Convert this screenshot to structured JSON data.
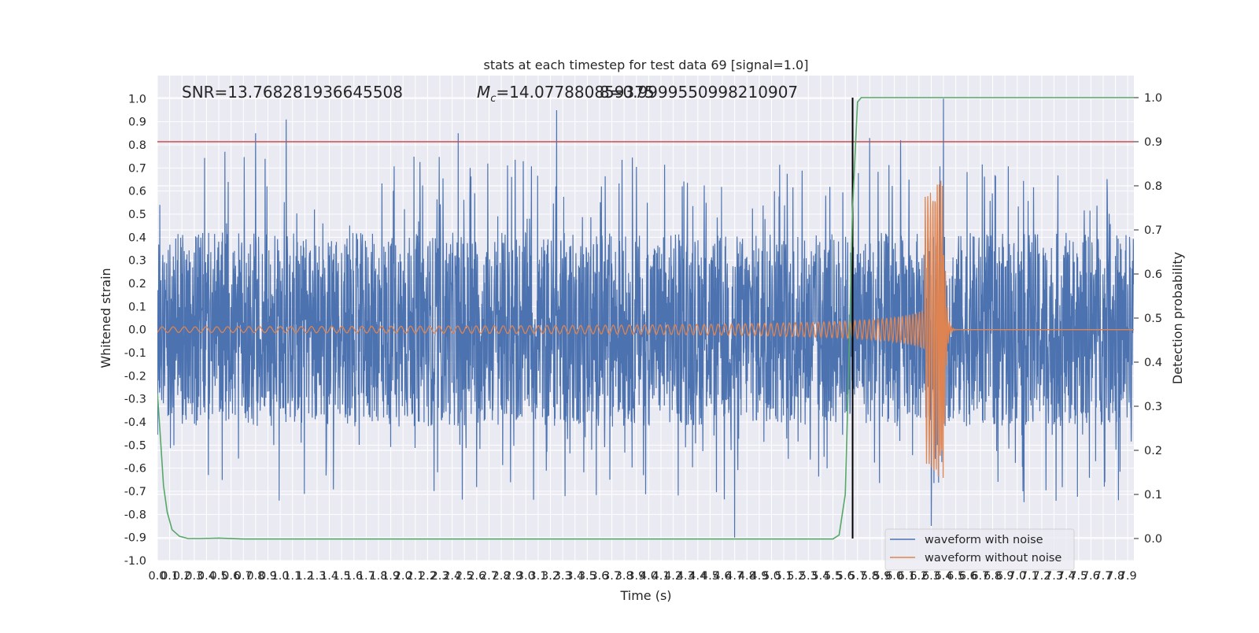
{
  "chart_data": {
    "type": "line",
    "title": "stats at each timestep for test data 69 [signal=1.0]",
    "xlabel": "Time (s)",
    "ylabel": "Whitened strain",
    "y2label": "Detection probability",
    "xlim": [
      0.0,
      7.95
    ],
    "ylim": [
      -1.0,
      1.1
    ],
    "y2lim": [
      -0.05,
      1.05
    ],
    "x_ticks": [
      "0.0",
      "0.1",
      "0.2",
      "0.3",
      "0.4",
      "0.5",
      "0.6",
      "0.7",
      "0.8",
      "0.9",
      "1.0",
      "1.1",
      "1.2",
      "1.3",
      "1.4",
      "1.5",
      "1.6",
      "1.7",
      "1.8",
      "1.9",
      "2.0",
      "2.1",
      "2.2",
      "2.3",
      "2.4",
      "2.5",
      "2.6",
      "2.7",
      "2.8",
      "2.9",
      "3.0",
      "3.1",
      "3.2",
      "3.3",
      "3.4",
      "3.5",
      "3.6",
      "3.7",
      "3.8",
      "3.9",
      "4.0",
      "4.1",
      "4.2",
      "4.3",
      "4.4",
      "4.5",
      "4.6",
      "4.7",
      "4.8",
      "4.9",
      "5.0",
      "5.1",
      "5.2",
      "5.3",
      "5.4",
      "5.5",
      "5.6",
      "5.7",
      "5.8",
      "5.9",
      "6.0",
      "6.1",
      "6.2",
      "6.3",
      "6.4",
      "6.5",
      "6.6",
      "6.7",
      "6.8",
      "6.9",
      "7.0",
      "7.1",
      "7.2",
      "7.3",
      "7.4",
      "7.5",
      "7.6",
      "7.7",
      "7.8",
      "7.9"
    ],
    "y_ticks": [
      "-1.0",
      "-0.9",
      "-0.8",
      "-0.7",
      "-0.6",
      "-0.5",
      "-0.4",
      "-0.3",
      "-0.2",
      "-0.1",
      "0.0",
      "0.1",
      "0.2",
      "0.3",
      "0.4",
      "0.5",
      "0.6",
      "0.7",
      "0.8",
      "0.9",
      "1.0"
    ],
    "y2_ticks": [
      "0.0",
      "0.1",
      "0.2",
      "0.3",
      "0.4",
      "0.5",
      "0.6",
      "0.7",
      "0.8",
      "0.9",
      "1.0"
    ],
    "annotations": {
      "snr": "SNR=13.768281936645508",
      "mc_symbol": "M",
      "mc_subscript": "c",
      "mc_text": "=14.077880859375",
      "overlap_text": "8=0.9999550998210907"
    },
    "threshold_line": {
      "y2": 0.9,
      "color": "#c44e52"
    },
    "event_line": {
      "x": 5.66,
      "color": "#000000"
    },
    "series": [
      {
        "name": "waveform with noise",
        "color": "#4c72b0",
        "description": "whitened strain noise, band about ±0.4 with spikes up to about 0.95 and down to about -0.9",
        "peaks": [
          [
            0.02,
            0.54
          ],
          [
            0.55,
            0.77
          ],
          [
            0.8,
            0.85
          ],
          [
            1.05,
            0.91
          ],
          [
            2.45,
            0.85
          ],
          [
            3.25,
            0.95
          ],
          [
            5.8,
            0.83
          ],
          [
            6.05,
            0.82
          ],
          [
            6.4,
            1.0
          ],
          [
            4.7,
            -0.9
          ],
          [
            6.3,
            -0.85
          ],
          [
            2.3,
            -0.1
          ],
          [
            6.35,
            -0.5
          ]
        ]
      },
      {
        "name": "waveform without noise",
        "color": "#dd8452",
        "description": "chirp signal: amplitude ~0.01 growing to peak ~0.65 near 6.4 s, then ringdown to 0",
        "merger_time": 6.4,
        "peak_amplitude": 0.65,
        "min_amplitude": -0.48
      },
      {
        "color": "#55a868",
        "axis": "y2",
        "description": "detection probability",
        "x": [
          0.0,
          0.02,
          0.05,
          0.08,
          0.12,
          0.18,
          0.25,
          0.35,
          0.5,
          0.7,
          1.0,
          2.0,
          3.0,
          4.0,
          5.0,
          5.5,
          5.55,
          5.6,
          5.63,
          5.66,
          5.7,
          5.73,
          5.76,
          6.0,
          7.0,
          7.95
        ],
        "y": [
          0.33,
          0.25,
          0.12,
          0.06,
          0.02,
          0.005,
          0.0,
          0.0,
          0.001,
          -0.001,
          -0.001,
          -0.001,
          -0.001,
          -0.001,
          -0.001,
          -0.001,
          0.008,
          0.1,
          0.4,
          0.75,
          0.99,
          1.0,
          1.0,
          1.0,
          1.0,
          1.0
        ]
      }
    ],
    "legend": {
      "placement": "lower right"
    }
  }
}
